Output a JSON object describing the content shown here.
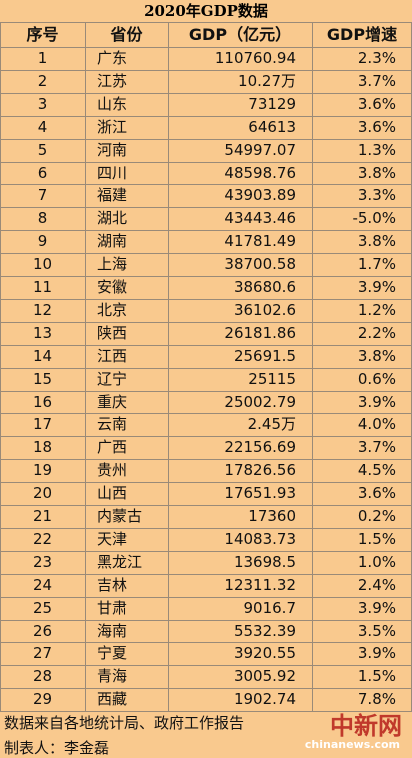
{
  "title": "2020年GDP数据",
  "table": {
    "header": [
      "序号",
      "省份",
      "GDP（亿元）",
      "GDP增速"
    ],
    "rows": [
      [
        "1",
        "广东",
        "110760.94",
        "2.3%"
      ],
      [
        "2",
        "江苏",
        "10.27万",
        "3.7%"
      ],
      [
        "3",
        "山东",
        "73129",
        "3.6%"
      ],
      [
        "4",
        "浙江",
        "64613",
        "3.6%"
      ],
      [
        "5",
        "河南",
        "54997.07",
        "1.3%"
      ],
      [
        "6",
        "四川",
        "48598.76",
        "3.8%"
      ],
      [
        "7",
        "福建",
        "43903.89",
        "3.3%"
      ],
      [
        "8",
        "湖北",
        "43443.46",
        "-5.0%"
      ],
      [
        "9",
        "湖南",
        "41781.49",
        "3.8%"
      ],
      [
        "10",
        "上海",
        "38700.58",
        "1.7%"
      ],
      [
        "11",
        "安徽",
        "38680.6",
        "3.9%"
      ],
      [
        "12",
        "北京",
        "36102.6",
        "1.2%"
      ],
      [
        "13",
        "陕西",
        "26181.86",
        "2.2%"
      ],
      [
        "14",
        "江西",
        "25691.5",
        "3.8%"
      ],
      [
        "15",
        "辽宁",
        "25115",
        "0.6%"
      ],
      [
        "16",
        "重庆",
        "25002.79",
        "3.9%"
      ],
      [
        "17",
        "云南",
        "2.45万",
        "4.0%"
      ],
      [
        "18",
        "广西",
        "22156.69",
        "3.7%"
      ],
      [
        "19",
        "贵州",
        "17826.56",
        "4.5%"
      ],
      [
        "20",
        "山西",
        "17651.93",
        "3.6%"
      ],
      [
        "21",
        "内蒙古",
        "17360",
        "0.2%"
      ],
      [
        "22",
        "天津",
        "14083.73",
        "1.5%"
      ],
      [
        "23",
        "黑龙江",
        "13698.5",
        "1.0%"
      ],
      [
        "24",
        "吉林",
        "12311.32",
        "2.4%"
      ],
      [
        "25",
        "甘肃",
        "9016.7",
        "3.9%"
      ],
      [
        "26",
        "海南",
        "5532.39",
        "3.5%"
      ],
      [
        "27",
        "宁夏",
        "3920.55",
        "3.9%"
      ],
      [
        "28",
        "青海",
        "3005.92",
        "1.5%"
      ],
      [
        "29",
        "西藏",
        "1902.74",
        "7.8%"
      ]
    ]
  },
  "footer": [
    "数据来自各地统计局、政府工作报告",
    "制表人：李金磊"
  ],
  "watermark": {
    "logo": "中新网",
    "site": "chinanews.com"
  }
}
